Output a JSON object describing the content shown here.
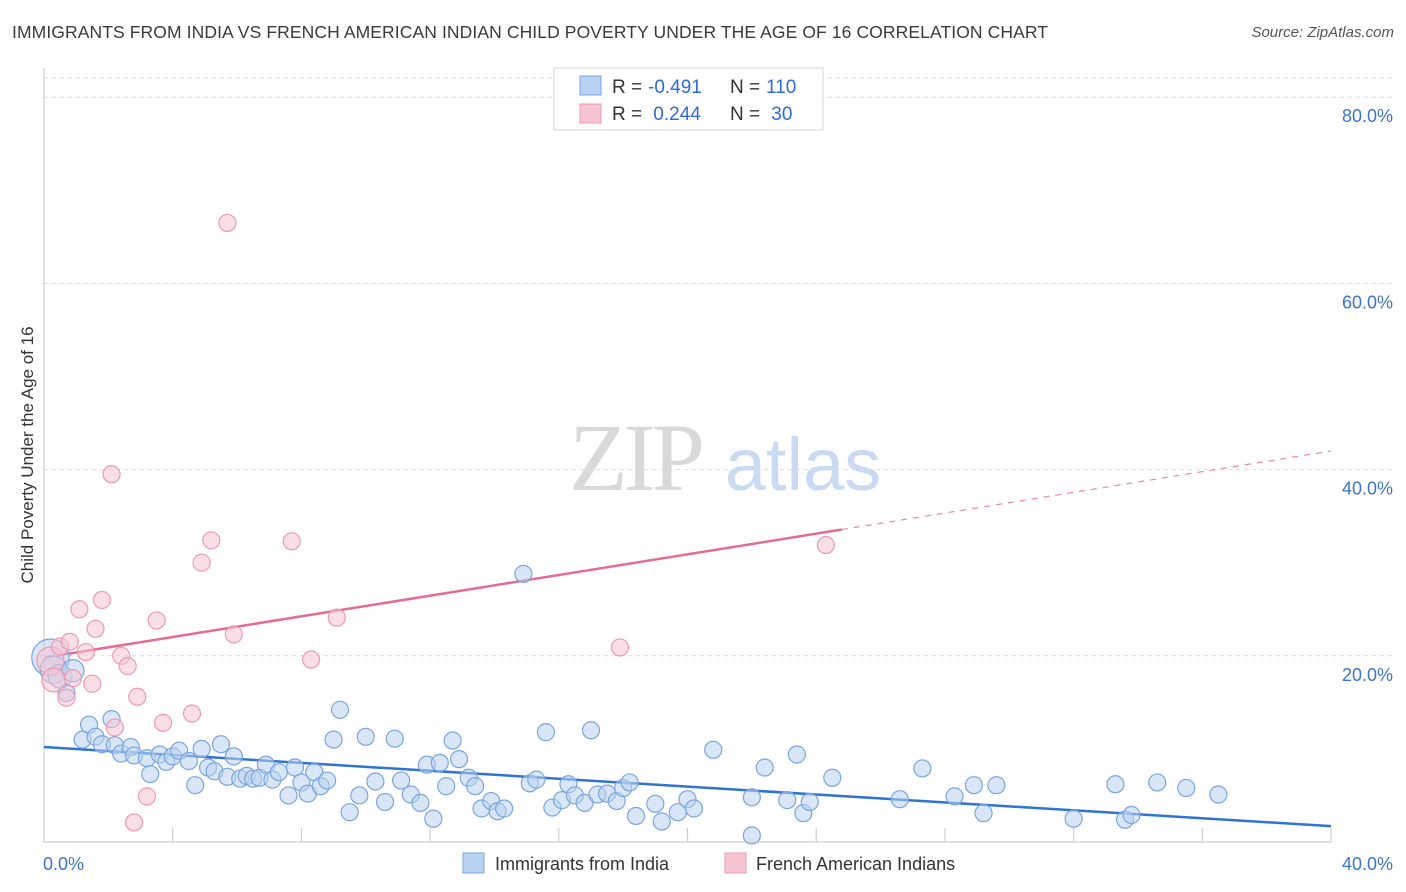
{
  "title": "IMMIGRANTS FROM INDIA VS FRENCH AMERICAN INDIAN CHILD POVERTY UNDER THE AGE OF 16 CORRELATION CHART",
  "source": "Source: ZipAtlas.com",
  "watermark": {
    "zip": "ZIP",
    "atlas": "atlas"
  },
  "colors": {
    "blue_fill": "#b9d2f1",
    "blue_stroke": "#7aa6de",
    "blue_line": "#2f74d0",
    "pink_fill": "#f7c4d3",
    "pink_stroke": "#ec9ab3",
    "pink_line": "#e46b94",
    "grid": "#dcdcdc",
    "tick_text": "#3d74c6"
  },
  "legend": {
    "rows": [
      {
        "r_label": "R = ",
        "r_value": "-0.491",
        "n_label": "N = ",
        "n_value": "110",
        "color": "blue"
      },
      {
        "r_label": "R = ",
        "r_value": " 0.244",
        "n_label": "N = ",
        "n_value": " 30",
        "color": "pink"
      }
    ]
  },
  "chart_data": {
    "type": "scatter",
    "title": "IMMIGRANTS FROM INDIA VS FRENCH AMERICAN INDIAN CHILD POVERTY UNDER THE AGE OF 16 CORRELATION CHART",
    "xlabel": "",
    "ylabel": "Child Poverty Under the Age of 16",
    "xlim": [
      0,
      40
    ],
    "ylim": [
      0,
      84
    ],
    "x_tick_labels": [
      {
        "value": 0,
        "label": "0.0%"
      },
      {
        "value": 40,
        "label": "40.0%"
      }
    ],
    "x_minor_ticks": [
      4,
      8,
      12,
      16,
      20,
      24,
      28,
      32,
      36,
      40
    ],
    "y_ticks": [
      {
        "value": 20,
        "label": "20.0%"
      },
      {
        "value": 40,
        "label": "40.0%"
      },
      {
        "value": 60,
        "label": "60.0%"
      },
      {
        "value": 80,
        "label": "80.0%"
      }
    ],
    "series": [
      {
        "name": "Immigrants from India",
        "color": "blue",
        "R": -0.491,
        "N": 110,
        "trend": {
          "x0": 0,
          "y0": 10.2,
          "x1": 40,
          "y1": 1.7,
          "dashed_from": null
        },
        "points": [
          [
            0.2,
            19.8,
            2.2
          ],
          [
            0.3,
            18.5,
            1.6
          ],
          [
            0.5,
            17.8,
            1.4
          ],
          [
            0.7,
            16.0,
            1.0
          ],
          [
            0.9,
            18.4,
            1.3
          ],
          [
            1.2,
            11.0,
            1.0
          ],
          [
            1.4,
            12.6,
            1.0
          ],
          [
            1.6,
            11.3,
            1.0
          ],
          [
            1.8,
            10.5,
            1.0
          ],
          [
            2.1,
            13.2,
            1.0
          ],
          [
            2.2,
            10.4,
            1.0
          ],
          [
            2.4,
            9.5,
            1.0
          ],
          [
            2.7,
            10.2,
            1.0
          ],
          [
            2.8,
            9.3,
            1.0
          ],
          [
            3.2,
            9.0,
            1.0
          ],
          [
            3.3,
            7.3,
            1.0
          ],
          [
            3.6,
            9.4,
            1.0
          ],
          [
            3.8,
            8.6,
            1.0
          ],
          [
            4.0,
            9.2,
            1.0
          ],
          [
            4.2,
            9.8,
            1.0
          ],
          [
            4.5,
            8.7,
            1.0
          ],
          [
            4.7,
            6.1,
            1.0
          ],
          [
            4.9,
            10.0,
            1.0
          ],
          [
            5.1,
            8.0,
            1.0
          ],
          [
            5.3,
            7.6,
            1.0
          ],
          [
            5.5,
            10.5,
            1.0
          ],
          [
            5.7,
            7.0,
            1.0
          ],
          [
            5.9,
            9.2,
            1.0
          ],
          [
            6.1,
            6.8,
            1.0
          ],
          [
            6.3,
            7.1,
            1.0
          ],
          [
            6.5,
            6.8,
            1.0
          ],
          [
            6.7,
            6.9,
            1.0
          ],
          [
            6.9,
            8.3,
            1.0
          ],
          [
            7.1,
            6.7,
            1.0
          ],
          [
            7.3,
            7.5,
            1.0
          ],
          [
            7.6,
            5.0,
            1.0
          ],
          [
            7.8,
            8.0,
            1.0
          ],
          [
            8.0,
            6.4,
            1.0
          ],
          [
            8.2,
            5.2,
            1.0
          ],
          [
            8.4,
            7.5,
            1.0
          ],
          [
            8.6,
            6.0,
            1.0
          ],
          [
            8.8,
            6.6,
            1.0
          ],
          [
            9.0,
            11.0,
            1.0
          ],
          [
            9.2,
            14.2,
            1.0
          ],
          [
            9.5,
            3.2,
            1.0
          ],
          [
            9.8,
            5.0,
            1.0
          ],
          [
            10.0,
            11.3,
            1.0
          ],
          [
            10.3,
            6.5,
            1.0
          ],
          [
            10.6,
            4.3,
            1.0
          ],
          [
            10.9,
            11.1,
            1.0
          ],
          [
            11.1,
            6.6,
            1.0
          ],
          [
            11.4,
            5.1,
            1.0
          ],
          [
            11.7,
            4.2,
            1.0
          ],
          [
            11.9,
            8.3,
            1.0
          ],
          [
            12.1,
            2.5,
            1.0
          ],
          [
            12.3,
            8.5,
            1.0
          ],
          [
            12.5,
            6.0,
            1.0
          ],
          [
            12.7,
            10.9,
            1.0
          ],
          [
            12.9,
            8.9,
            1.0
          ],
          [
            13.2,
            6.9,
            1.0
          ],
          [
            13.4,
            6.0,
            1.0
          ],
          [
            13.6,
            3.6,
            1.0
          ],
          [
            13.9,
            4.4,
            1.0
          ],
          [
            14.1,
            3.3,
            1.0
          ],
          [
            14.3,
            3.6,
            1.0
          ],
          [
            14.9,
            28.8,
            1.0
          ],
          [
            15.1,
            6.3,
            1.0
          ],
          [
            15.3,
            6.7,
            1.0
          ],
          [
            15.6,
            11.8,
            1.0
          ],
          [
            15.8,
            3.7,
            1.0
          ],
          [
            16.1,
            4.5,
            1.0
          ],
          [
            16.3,
            6.2,
            1.0
          ],
          [
            16.5,
            5.0,
            1.0
          ],
          [
            16.8,
            4.2,
            1.0
          ],
          [
            17.0,
            12.0,
            1.0
          ],
          [
            17.2,
            5.1,
            1.0
          ],
          [
            17.5,
            5.2,
            1.0
          ],
          [
            17.8,
            4.4,
            1.0
          ],
          [
            18.0,
            5.8,
            1.0
          ],
          [
            18.2,
            6.4,
            1.0
          ],
          [
            18.4,
            2.8,
            1.0
          ],
          [
            19.0,
            4.1,
            1.0
          ],
          [
            19.2,
            2.2,
            1.0
          ],
          [
            19.7,
            3.2,
            1.0
          ],
          [
            20.0,
            4.6,
            1.0
          ],
          [
            20.2,
            3.6,
            1.0
          ],
          [
            20.8,
            9.9,
            1.0
          ],
          [
            22.0,
            4.8,
            1.0
          ],
          [
            22.4,
            8.0,
            1.0
          ],
          [
            23.1,
            4.5,
            1.0
          ],
          [
            23.4,
            9.4,
            1.0
          ],
          [
            23.6,
            3.1,
            1.0
          ],
          [
            23.8,
            4.3,
            1.0
          ],
          [
            24.5,
            6.9,
            1.0
          ],
          [
            26.6,
            4.6,
            1.0
          ],
          [
            27.3,
            7.9,
            1.0
          ],
          [
            28.3,
            4.9,
            1.0
          ],
          [
            28.9,
            6.1,
            1.0
          ],
          [
            29.2,
            3.1,
            1.0
          ],
          [
            29.6,
            6.1,
            1.0
          ],
          [
            32.0,
            2.5,
            1.0
          ],
          [
            33.3,
            6.2,
            1.0
          ],
          [
            33.6,
            2.4,
            1.0
          ],
          [
            33.8,
            2.9,
            1.0
          ],
          [
            34.6,
            6.4,
            1.0
          ],
          [
            35.5,
            5.8,
            1.0
          ],
          [
            36.5,
            5.1,
            1.0
          ],
          [
            22.0,
            0.7,
            1.0
          ]
        ]
      },
      {
        "name": "French American Indians",
        "color": "pink",
        "R": 0.244,
        "N": 30,
        "trend": {
          "x0": 0,
          "y0": 19.8,
          "x1": 40,
          "y1": 42.0,
          "dashed_from": 24.8
        },
        "points": [
          [
            0.2,
            19.5,
            1.6
          ],
          [
            0.3,
            17.4,
            1.4
          ],
          [
            0.5,
            21.0,
            1.0
          ],
          [
            0.8,
            21.5,
            1.0
          ],
          [
            0.9,
            17.6,
            1.0
          ],
          [
            1.1,
            25.0,
            1.0
          ],
          [
            1.3,
            20.4,
            1.0
          ],
          [
            1.5,
            17.0,
            1.0
          ],
          [
            1.6,
            22.9,
            1.0
          ],
          [
            1.8,
            26.0,
            1.0
          ],
          [
            2.1,
            39.5,
            1.0
          ],
          [
            2.2,
            12.3,
            1.0
          ],
          [
            2.4,
            20.0,
            1.0
          ],
          [
            2.6,
            18.9,
            1.0
          ],
          [
            2.9,
            15.6,
            1.0
          ],
          [
            3.2,
            4.9,
            1.0
          ],
          [
            3.5,
            23.8,
            1.0
          ],
          [
            3.7,
            12.8,
            1.0
          ],
          [
            4.6,
            13.8,
            1.0
          ],
          [
            4.9,
            30.0,
            1.0
          ],
          [
            5.2,
            32.4,
            1.0
          ],
          [
            5.7,
            66.5,
            1.0
          ],
          [
            5.9,
            22.3,
            1.0
          ],
          [
            7.7,
            32.3,
            1.0
          ],
          [
            8.3,
            19.6,
            1.0
          ],
          [
            9.1,
            24.1,
            1.0
          ],
          [
            17.9,
            20.9,
            1.0
          ],
          [
            24.3,
            31.9,
            1.0
          ],
          [
            2.8,
            2.1,
            1.0
          ],
          [
            0.7,
            15.5,
            1.0
          ]
        ]
      }
    ],
    "legend_position": "top-center",
    "bottom_legend": [
      "Immigrants from India",
      "French American Indians"
    ]
  }
}
